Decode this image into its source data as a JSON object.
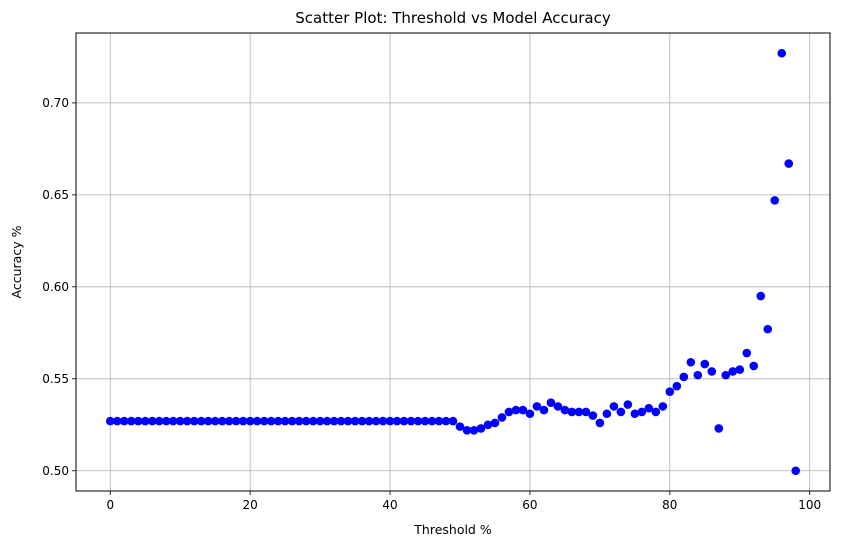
{
  "chart_data": {
    "type": "scatter",
    "title": "Scatter Plot: Threshold vs Model Accuracy",
    "xlabel": "Threshold %",
    "ylabel": "Accuracy %",
    "xlim": [
      -4.9,
      102.9
    ],
    "ylim": [
      0.489,
      0.738
    ],
    "xticks": [
      0,
      20,
      40,
      60,
      80,
      100
    ],
    "yticks": [
      0.5,
      0.55,
      0.6,
      0.65,
      0.7
    ],
    "xtick_labels": [
      "0",
      "20",
      "40",
      "60",
      "80",
      "100"
    ],
    "ytick_labels": [
      "0.50",
      "0.55",
      "0.60",
      "0.65",
      "0.70"
    ],
    "grid": true,
    "marker_color": "#0000ff",
    "series": [
      {
        "x": [
          0,
          1,
          2,
          3,
          4,
          5,
          6,
          7,
          8,
          9,
          10,
          11,
          12,
          13,
          14,
          15,
          16,
          17,
          18,
          19,
          20,
          21,
          22,
          23,
          24,
          25,
          26,
          27,
          28,
          29,
          30,
          31,
          32,
          33,
          34,
          35,
          36,
          37,
          38,
          39,
          40,
          41,
          42,
          43,
          44,
          45,
          46,
          47,
          48,
          49,
          50,
          51,
          52,
          53,
          54,
          55,
          56,
          57,
          58,
          59,
          60,
          61,
          62,
          63,
          64,
          65,
          66,
          67,
          68,
          69,
          70,
          71,
          72,
          73,
          74,
          75,
          76,
          77,
          78,
          79,
          80,
          81,
          82,
          83,
          84,
          85,
          86,
          87,
          88,
          89,
          90,
          91,
          92,
          93,
          94,
          95,
          96,
          97,
          98
        ],
        "y": [
          0.527,
          0.527,
          0.527,
          0.527,
          0.527,
          0.527,
          0.527,
          0.527,
          0.527,
          0.527,
          0.527,
          0.527,
          0.527,
          0.527,
          0.527,
          0.527,
          0.527,
          0.527,
          0.527,
          0.527,
          0.527,
          0.527,
          0.527,
          0.527,
          0.527,
          0.527,
          0.527,
          0.527,
          0.527,
          0.527,
          0.527,
          0.527,
          0.527,
          0.527,
          0.527,
          0.527,
          0.527,
          0.527,
          0.527,
          0.527,
          0.527,
          0.527,
          0.527,
          0.527,
          0.527,
          0.527,
          0.527,
          0.527,
          0.527,
          0.527,
          0.524,
          0.522,
          0.522,
          0.523,
          0.525,
          0.526,
          0.529,
          0.532,
          0.533,
          0.533,
          0.531,
          0.535,
          0.533,
          0.537,
          0.535,
          0.533,
          0.532,
          0.532,
          0.532,
          0.53,
          0.526,
          0.531,
          0.535,
          0.532,
          0.536,
          0.531,
          0.532,
          0.534,
          0.532,
          0.535,
          0.543,
          0.546,
          0.551,
          0.559,
          0.552,
          0.558,
          0.554,
          0.523,
          0.552,
          0.554,
          0.555,
          0.564,
          0.557,
          0.595,
          0.577,
          0.647,
          0.727,
          0.667,
          0.5
        ]
      }
    ]
  }
}
